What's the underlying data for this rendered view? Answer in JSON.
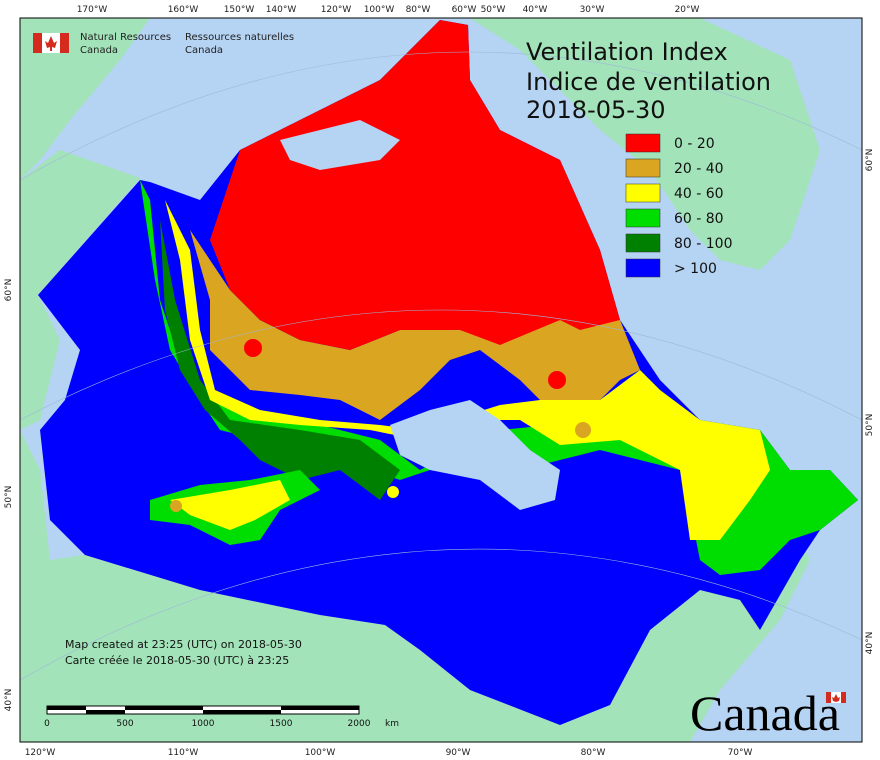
{
  "header": {
    "agency_en": [
      "Natural Resources",
      "Canada"
    ],
    "agency_fr": [
      "Ressources naturelles",
      "Canada"
    ]
  },
  "title": {
    "line1": "Ventilation Index",
    "line2": "Indice de ventilation",
    "date": "2018-05-30"
  },
  "legend": [
    {
      "label": "0 - 20",
      "color": "#ff0000"
    },
    {
      "label": "20 - 40",
      "color": "#daa520"
    },
    {
      "label": "40 - 60",
      "color": "#ffff00"
    },
    {
      "label": "60 - 80",
      "color": "#00dd00"
    },
    {
      "label": "80 - 100",
      "color": "#008000"
    },
    {
      "label": "> 100",
      "color": "#0000ff"
    }
  ],
  "graticule": {
    "top": [
      "170°W",
      "160°W",
      "150°W",
      "140°W",
      "120°W",
      "100°W",
      "80°W",
      "60°W",
      "50°W",
      "40°W",
      "30°W",
      "20°W"
    ],
    "bottom": [
      "120°W",
      "110°W",
      "100°W",
      "90°W",
      "80°W",
      "70°W"
    ],
    "left": [
      "60°N",
      "50°N",
      "40°N"
    ],
    "right": [
      "60°N",
      "50°N",
      "40°N"
    ]
  },
  "footer": {
    "created_en": "Map created at 23:25 (UTC) on 2018-05-30",
    "created_fr": "Carte créée le 2018-05-30 (UTC) à 23:25"
  },
  "scale_bar": {
    "labels": [
      "0",
      "500",
      "1000",
      "1500",
      "2000",
      "km"
    ]
  },
  "wordmark": "Canada"
}
